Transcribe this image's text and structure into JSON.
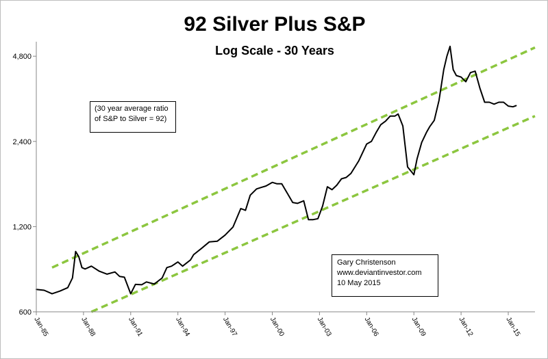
{
  "chart_data": {
    "type": "line",
    "title": "92 Silver Plus S&P",
    "subtitle": "Log Scale - 30 Years",
    "xlabel": "",
    "ylabel": "",
    "y_scale": "log",
    "ylim": [
      600,
      5400
    ],
    "y_ticks": [
      600,
      1200,
      2400,
      4800
    ],
    "y_tick_labels": [
      "600",
      "1,200",
      "2,400",
      "4,800"
    ],
    "xlim": [
      1985.0,
      2016.7
    ],
    "x_ticks": [
      1985,
      1988,
      1991,
      1994,
      1997,
      2000,
      2003,
      2006,
      2009,
      2012,
      2015
    ],
    "x_tick_labels": [
      "Jan-85",
      "Jan-88",
      "Jan-91",
      "Jan-94",
      "Jan-97",
      "Jan-00",
      "Jan-03",
      "Jan-06",
      "Jan-09",
      "Jan-12",
      "Jan-15"
    ],
    "grid": false,
    "legend": "none",
    "colors": {
      "series": "#000000",
      "trend": "#8cc63f",
      "text": "#000000"
    },
    "series": [
      {
        "name": "92 Silver Plus S&P",
        "x": [
          1985.0,
          1985.5,
          1986.0,
          1986.5,
          1987.0,
          1987.3,
          1987.5,
          1987.7,
          1987.9,
          1988.1,
          1988.5,
          1989.0,
          1989.5,
          1990.0,
          1990.3,
          1990.6,
          1991.0,
          1991.3,
          1991.7,
          1992.0,
          1992.5,
          1993.0,
          1993.3,
          1993.6,
          1994.0,
          1994.3,
          1994.8,
          1995.0,
          1995.5,
          1996.0,
          1996.5,
          1997.0,
          1997.5,
          1998.0,
          1998.3,
          1998.6,
          1999.0,
          1999.3,
          1999.6,
          2000.0,
          2000.3,
          2000.6,
          2001.0,
          2001.3,
          2001.6,
          2002.0,
          2002.3,
          2002.6,
          2002.9,
          2003.2,
          2003.5,
          2003.8,
          2004.1,
          2004.4,
          2004.7,
          2005.0,
          2005.5,
          2006.0,
          2006.3,
          2006.6,
          2006.9,
          2007.2,
          2007.5,
          2007.8,
          2008.0,
          2008.3,
          2008.6,
          2008.9,
          2009.0,
          2009.2,
          2009.5,
          2009.8,
          2010.0,
          2010.3,
          2010.6,
          2010.9,
          2011.1,
          2011.3,
          2011.5,
          2011.7,
          2012.0,
          2012.3,
          2012.6,
          2012.9,
          2013.2,
          2013.5,
          2013.8,
          2014.1,
          2014.4,
          2014.7,
          2015.0,
          2015.3,
          2015.5
        ],
        "values": [
          720,
          715,
          695,
          710,
          730,
          790,
          980,
          940,
          860,
          850,
          870,
          835,
          815,
          830,
          800,
          795,
          695,
          750,
          748,
          765,
          752,
          790,
          860,
          870,
          900,
          870,
          915,
          955,
          1005,
          1060,
          1065,
          1120,
          1195,
          1390,
          1370,
          1550,
          1630,
          1650,
          1670,
          1720,
          1700,
          1700,
          1560,
          1460,
          1450,
          1480,
          1270,
          1270,
          1280,
          1420,
          1660,
          1620,
          1680,
          1770,
          1790,
          1850,
          2050,
          2350,
          2400,
          2580,
          2750,
          2830,
          2950,
          2950,
          3000,
          2720,
          1950,
          1860,
          1830,
          2080,
          2380,
          2580,
          2700,
          2850,
          3350,
          4300,
          4800,
          5200,
          4300,
          4100,
          4050,
          3900,
          4200,
          4250,
          3700,
          3300,
          3300,
          3250,
          3300,
          3300,
          3200,
          3180,
          3210
        ]
      }
    ],
    "trend_lines": [
      {
        "name": "upper-trend",
        "style": "dashed",
        "x": [
          1986.0,
          2016.7
        ],
        "y": [
          860,
          5150
        ]
      },
      {
        "name": "lower-trend",
        "style": "dashed",
        "x": [
          1988.5,
          2016.7
        ],
        "y": [
          600,
          2950
        ]
      }
    ],
    "annotations": {
      "ratio_note": [
        "(30 year average ratio",
        "of S&P to Silver = 92)"
      ],
      "author_note": [
        "Gary Christenson",
        "www.deviantinvestor.com",
        "10 May 2015"
      ]
    }
  }
}
